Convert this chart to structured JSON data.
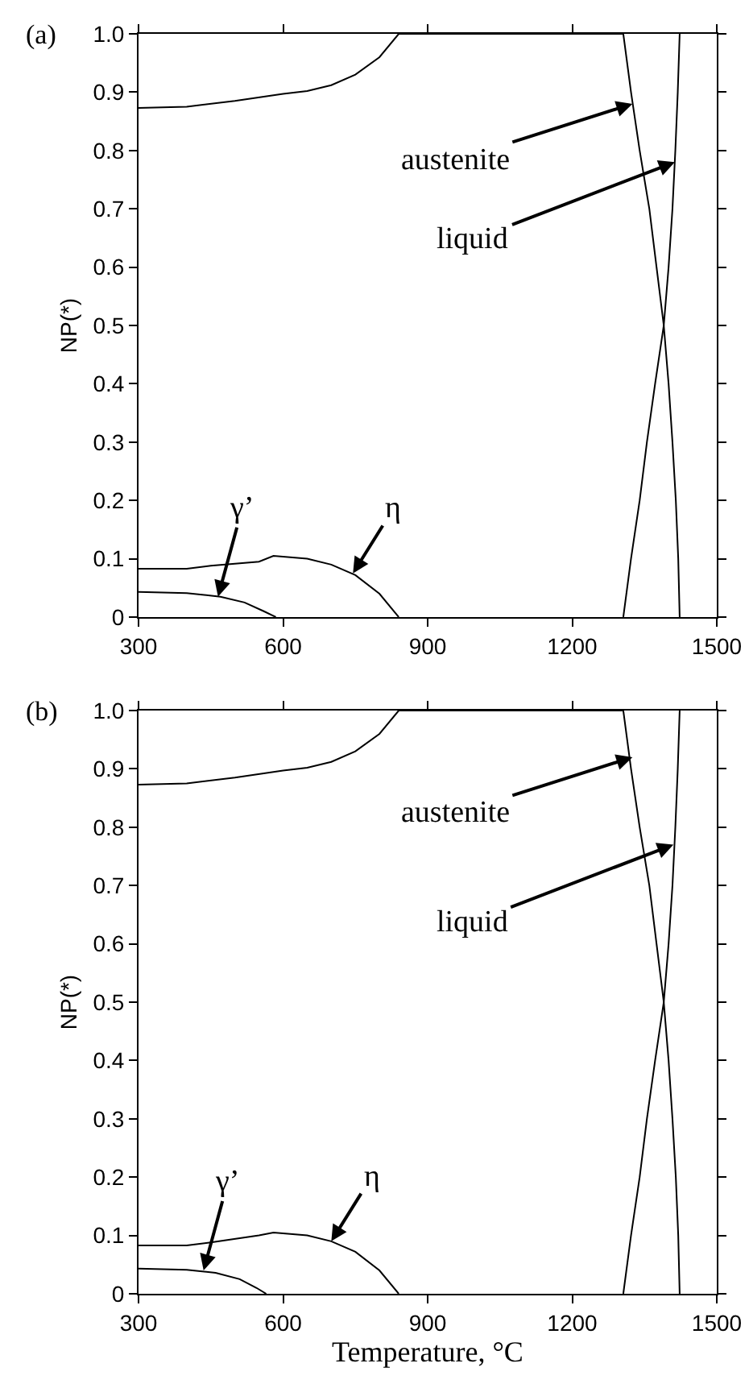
{
  "chart_data": [
    {
      "type": "line",
      "xlim": [
        300,
        1500
      ],
      "xticks": [
        300,
        600,
        900,
        1200,
        1500
      ],
      "ylim": [
        0,
        1
      ],
      "yticks": [
        0,
        0.1,
        0.2,
        0.3,
        0.4,
        0.5,
        0.6,
        0.7,
        0.8,
        0.9,
        {
          "value": 1,
          "label": "1.0"
        }
      ],
      "ylabel": "NP(*)",
      "grid": false,
      "marker": "none",
      "line_style": "solid",
      "annotations": [
        "(a)",
        {
          "text": "austenite",
          "x": 1325,
          "y": 0.88
        },
        {
          "text": "liquid",
          "x": 1413,
          "y": 0.78
        },
        {
          "text": "γ’",
          "x": 465,
          "y": 0.035
        },
        {
          "text": "η",
          "x": 745,
          "y": 0.075
        }
      ],
      "series": [
        {
          "color": "#000000",
          "x": [
            300,
            400,
            500,
            600,
            650,
            700,
            750,
            800,
            840,
            1306,
            1322,
            1340,
            1360,
            1375,
            1390,
            1400,
            1408,
            1415,
            1420,
            1423
          ],
          "values": [
            0.873,
            0.875,
            0.885,
            0.897,
            0.902,
            0.912,
            0.93,
            0.96,
            1.0,
            1.0,
            0.9,
            0.8,
            0.7,
            0.6,
            0.5,
            0.4,
            0.3,
            0.2,
            0.1,
            0
          ]
        },
        {
          "color": "#000000",
          "x": [
            1306,
            1322,
            1340,
            1355,
            1372,
            1390,
            1400,
            1408,
            1414,
            1419,
            1423
          ],
          "values": [
            0,
            0.1,
            0.2,
            0.3,
            0.4,
            0.5,
            0.6,
            0.7,
            0.8,
            0.9,
            1.0
          ]
        },
        {
          "color": "#000000",
          "x": [
            300,
            400,
            470,
            520,
            560,
            585
          ],
          "values": [
            0.043,
            0.041,
            0.035,
            0.025,
            0.01,
            0
          ]
        },
        {
          "color": "#000000",
          "x": [
            300,
            400,
            450,
            550,
            580,
            650,
            700,
            750,
            800,
            840
          ],
          "values": [
            0.083,
            0.083,
            0.088,
            0.095,
            0.105,
            0.1,
            0.09,
            0.072,
            0.04,
            0
          ]
        }
      ]
    },
    {
      "type": "line",
      "xlim": [
        300,
        1500
      ],
      "xticks": [
        300,
        600,
        900,
        1200,
        1500
      ],
      "ylim": [
        0,
        1
      ],
      "yticks": [
        0,
        0.1,
        0.2,
        0.3,
        0.4,
        0.5,
        0.6,
        0.7,
        0.8,
        0.9,
        {
          "value": 1,
          "label": "1.0"
        }
      ],
      "xlabel": "Temperature, °C",
      "ylabel": "NP(*)",
      "grid": false,
      "marker": "none",
      "line_style": "solid",
      "annotations": [
        "(b)",
        {
          "text": "austenite",
          "x": 1325,
          "y": 0.92
        },
        {
          "text": "liquid",
          "x": 1410,
          "y": 0.77
        },
        {
          "text": "γ’",
          "x": 435,
          "y": 0.04
        },
        {
          "text": "η",
          "x": 700,
          "y": 0.09
        }
      ],
      "series": [
        {
          "color": "#000000",
          "x": [
            300,
            400,
            500,
            600,
            650,
            700,
            750,
            800,
            840,
            1306,
            1322,
            1340,
            1360,
            1375,
            1390,
            1400,
            1408,
            1415,
            1420,
            1423
          ],
          "values": [
            0.873,
            0.875,
            0.885,
            0.897,
            0.902,
            0.912,
            0.93,
            0.96,
            1.0,
            1.0,
            0.9,
            0.8,
            0.7,
            0.6,
            0.5,
            0.4,
            0.3,
            0.2,
            0.1,
            0
          ]
        },
        {
          "color": "#000000",
          "x": [
            1306,
            1322,
            1340,
            1355,
            1372,
            1390,
            1400,
            1408,
            1414,
            1419,
            1423
          ],
          "values": [
            0,
            0.1,
            0.2,
            0.3,
            0.4,
            0.5,
            0.6,
            0.7,
            0.8,
            0.9,
            1.0
          ]
        },
        {
          "color": "#000000",
          "x": [
            300,
            400,
            460,
            510,
            545,
            565
          ],
          "values": [
            0.043,
            0.041,
            0.036,
            0.025,
            0.01,
            0
          ]
        },
        {
          "color": "#000000",
          "x": [
            300,
            400,
            450,
            550,
            580,
            650,
            700,
            750,
            800,
            840
          ],
          "values": [
            0.083,
            0.083,
            0.088,
            0.1,
            0.105,
            0.1,
            0.09,
            0.072,
            0.04,
            0
          ]
        }
      ]
    }
  ]
}
